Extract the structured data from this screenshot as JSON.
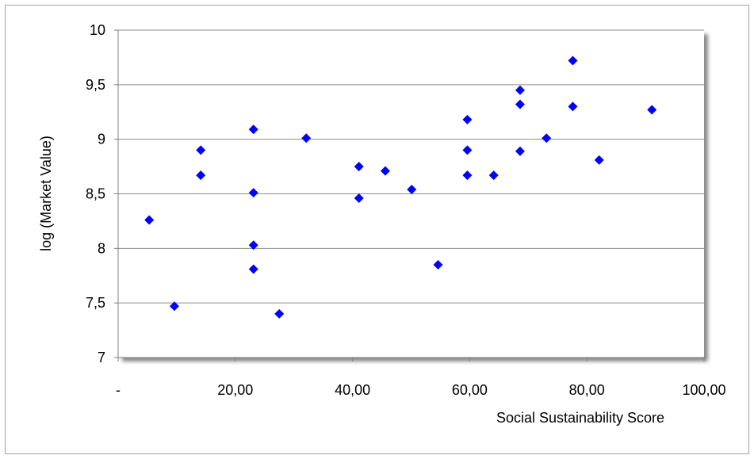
{
  "chart_data": {
    "type": "scatter",
    "xlabel": "Social Sustainability Score",
    "ylabel": "log (Market Value)",
    "xlim": [
      0,
      100
    ],
    "ylim": [
      7,
      10
    ],
    "x_ticks": [
      {
        "value": 0,
        "label": "-"
      },
      {
        "value": 20,
        "label": "20,00"
      },
      {
        "value": 40,
        "label": "40,00"
      },
      {
        "value": 60,
        "label": "60,00"
      },
      {
        "value": 80,
        "label": "80,00"
      },
      {
        "value": 100,
        "label": "100,00"
      }
    ],
    "y_ticks": [
      {
        "value": 7,
        "label": "7"
      },
      {
        "value": 7.5,
        "label": "7,5"
      },
      {
        "value": 8,
        "label": "8"
      },
      {
        "value": 8.5,
        "label": "8,5"
      },
      {
        "value": 9,
        "label": "9"
      },
      {
        "value": 9.5,
        "label": "9,5"
      },
      {
        "value": 10,
        "label": "10"
      }
    ],
    "grid": "horizontal",
    "marker": "diamond",
    "marker_color": "#0000ff",
    "series": [
      {
        "points": [
          {
            "x": 5.3,
            "y": 8.26
          },
          {
            "x": 9.6,
            "y": 7.47
          },
          {
            "x": 14.1,
            "y": 8.9
          },
          {
            "x": 14.1,
            "y": 8.67
          },
          {
            "x": 23.1,
            "y": 9.09
          },
          {
            "x": 23.1,
            "y": 8.51
          },
          {
            "x": 23.1,
            "y": 8.03
          },
          {
            "x": 23.1,
            "y": 7.81
          },
          {
            "x": 27.5,
            "y": 7.4
          },
          {
            "x": 32.1,
            "y": 9.01
          },
          {
            "x": 41.1,
            "y": 8.75
          },
          {
            "x": 41.1,
            "y": 8.46
          },
          {
            "x": 45.6,
            "y": 8.71
          },
          {
            "x": 50.1,
            "y": 8.54
          },
          {
            "x": 54.6,
            "y": 7.85
          },
          {
            "x": 59.6,
            "y": 9.18
          },
          {
            "x": 59.6,
            "y": 8.9
          },
          {
            "x": 59.6,
            "y": 8.67
          },
          {
            "x": 64.1,
            "y": 8.67
          },
          {
            "x": 68.6,
            "y": 9.45
          },
          {
            "x": 68.6,
            "y": 9.32
          },
          {
            "x": 68.6,
            "y": 8.89
          },
          {
            "x": 73.1,
            "y": 9.01
          },
          {
            "x": 77.6,
            "y": 9.72
          },
          {
            "x": 77.6,
            "y": 9.3
          },
          {
            "x": 82.1,
            "y": 8.81
          },
          {
            "x": 91.1,
            "y": 9.27
          }
        ]
      }
    ]
  }
}
